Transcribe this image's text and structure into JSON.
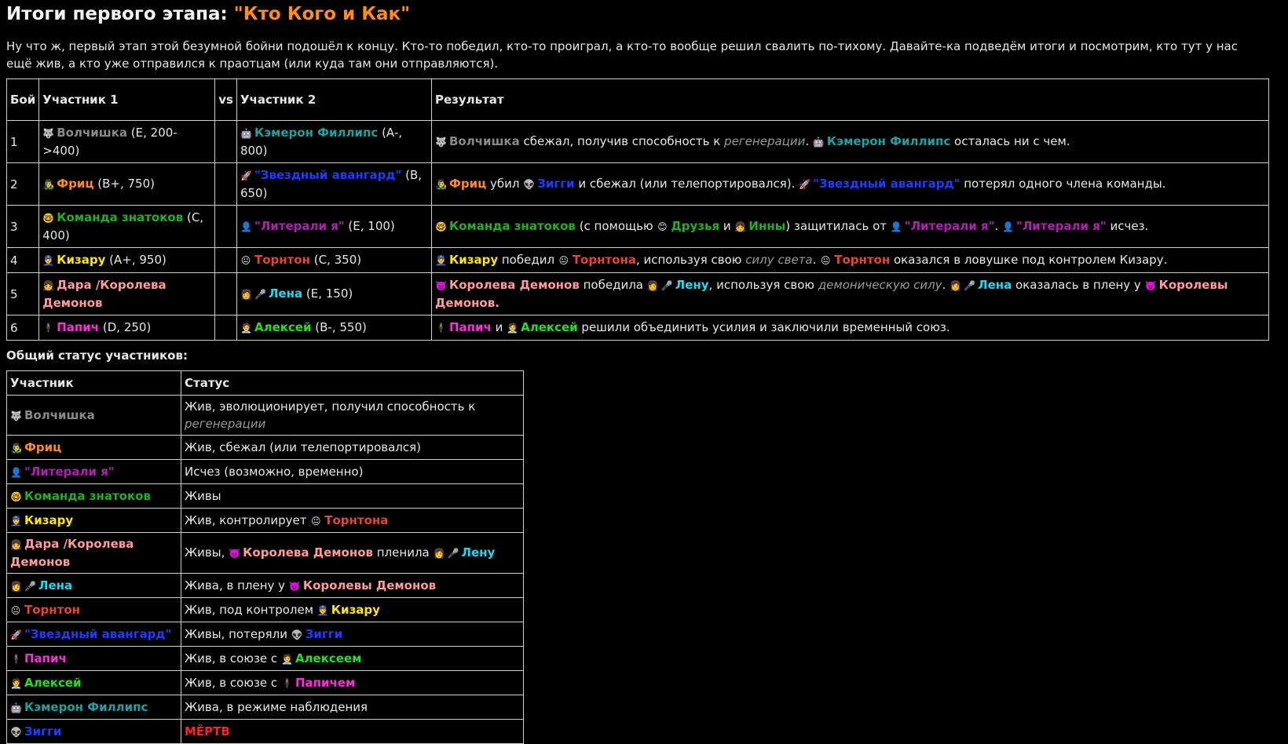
{
  "title_prefix": "Итоги первого этапа: ",
  "title_quote": "\"Кто Кого и Как\"",
  "intro": "Ну что ж, первый этап этой безумной бойни подошёл к концу. Кто-то победил, кто-то проиграл, а кто-то вообще решил свалить по-тихому. Давайте-ка подведём итоги и посмотрим, кто тут у нас ещё жив, а кто уже отправился к праотцам (или куда там они отправляются).",
  "battles_headers": {
    "num": "Бой",
    "p1": "Участник 1",
    "vs": "vs",
    "p2": "Участник 2",
    "result": "Результат"
  },
  "status_heading": "Общий статус участников:",
  "status_headers": {
    "participant": "Участник",
    "status": "Статус"
  },
  "names": {
    "wolf": "Волчишка",
    "cameron": "Кэмерон Филлипс",
    "fritz": "Фриц",
    "vanguard": "\"Звездный авангард\"",
    "ziggy": "Зигги",
    "team": "Команда знатоков",
    "literally": "\"Литерали я\"",
    "friends": "Друзья",
    "inna": "Инны",
    "kizaru": "Кизару",
    "kizaru_gen": "Кизару",
    "thornton": "Торнтон",
    "thornton_gen": "Торнтона",
    "dara": "Дара /Королева Демонов",
    "queen": "Королева Демонов",
    "queen_gen": "Королевы Демонов",
    "queen_gen2": "Королевы",
    "demons_gen": "Демонов.",
    "lena": "Лена",
    "lena_acc": "Лену",
    "papich": "Папич",
    "papich_inst": "Папичем",
    "alexey": "Алексей",
    "alexey_inst": "Алексеем"
  },
  "battles": [
    {
      "num": "1",
      "p1_stats": " (E, 200->400)",
      "p2_stats": " (A-, 800)",
      "r_a": " сбежал, получив способность к ",
      "r_em": "регенерации",
      "r_b": ". ",
      "r_c": " осталась ни с чем."
    },
    {
      "num": "2",
      "p1_stats": " (B+, 750)",
      "p2_stats": " (B, 650)",
      "r_a": " убил ",
      "r_b": " и сбежал (или телепортировался). ",
      "r_c": " потерял одного члена команды."
    },
    {
      "num": "3",
      "p1_stats": " (C, 400)",
      "p2_stats": " (E, 100)",
      "r_a": " (с помощью ",
      "r_b": " и ",
      "r_c": ") защитилась от ",
      "r_d": ". ",
      "r_e": " исчез."
    },
    {
      "num": "4",
      "p1_stats": " (A+, 950)",
      "p2_stats": " (C, 350)",
      "r_a": " победил ",
      "r_b": ", используя свою ",
      "r_em": "силу света",
      "r_c": ". ",
      "r_d": " оказался в ловушке под контролем Кизару."
    },
    {
      "num": "5",
      "p1_stats": "",
      "p2_stats": " (E, 150)",
      "r_a": " победила ",
      "r_b": ", используя свою ",
      "r_em": "демоническую силу",
      "r_c": ". ",
      "r_d": " оказалась в плену у "
    },
    {
      "num": "6",
      "p1_stats": " (D, 250)",
      "p2_stats": " (B-, 550)",
      "r_a": " и ",
      "r_b": " решили объединить усилия и заключили временный союз."
    }
  ],
  "statuses": {
    "wolf_a": "Жив, эволюционирует, получил способность к ",
    "wolf_em": "регенерации",
    "fritz": "Жив, сбежал (или телепортировался)",
    "literally": "Исчез (возможно, временно)",
    "team": "Живы",
    "kizaru": "Жив, контролирует ",
    "dara_a": "Живы, ",
    "dara_b": " пленила ",
    "lena": "Жива, в плену у ",
    "thornton": "Жив, под контролем ",
    "vanguard": "Живы, потеряли ",
    "papich": "Жив, в союзе с ",
    "alexey": "Жив, в союзе с ",
    "cameron": "Жива, в режиме наблюдения",
    "ziggy": "МЁРТВ"
  },
  "icons": {
    "wolf": "🐺",
    "cameron": "🤖",
    "fritz": "👨‍🎤",
    "rocket": "🚀",
    "alien": "👽",
    "nerd": "🤓",
    "ghost": "👤",
    "friends": "😊",
    "inna": "👧",
    "cop": "👮",
    "thornton": "😐",
    "dara": "👧",
    "devil": "👿",
    "lena": "👩",
    "mic": "🎤",
    "papich": "🕴",
    "alexey": "🧑‍💼"
  },
  "colors": {
    "title_accent": "#ff8c1a",
    "grey": "#8a8a8a",
    "teal": "#20a0a0",
    "orange": "#ff8c1a",
    "blue": "#1e3cff",
    "green": "#22b022",
    "purple": "#b020b0",
    "yellow": "#ffe600",
    "pink": "#ff9a9a",
    "cyan": "#22d8f0",
    "magenta": "#ff2dd9",
    "lime": "#22e022",
    "thornton": "#e54533",
    "dead": "#ff2222"
  }
}
